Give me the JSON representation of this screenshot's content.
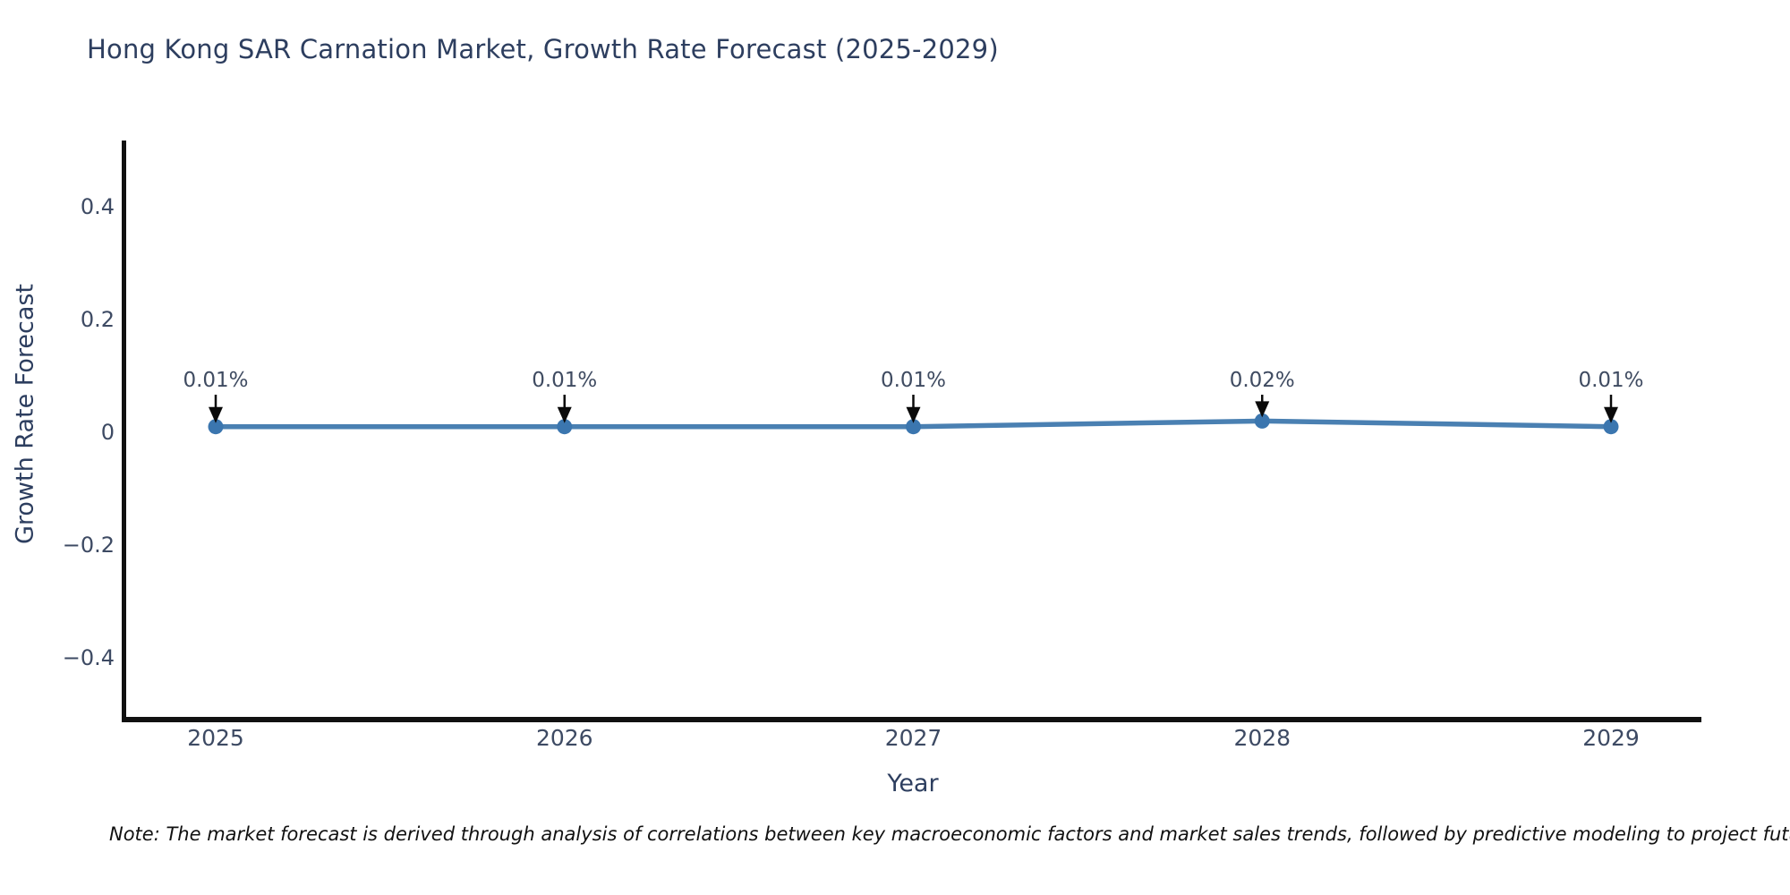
{
  "chart_data": {
    "type": "line",
    "title": "Hong Kong SAR Carnation Market, Growth Rate Forecast (2025-2029)",
    "xlabel": "Year",
    "ylabel": "Growth Rate Forecast",
    "x": [
      2025,
      2026,
      2027,
      2028,
      2029
    ],
    "series": [
      {
        "name": "Growth Rate Forecast (%)",
        "values": [
          0.01,
          0.01,
          0.01,
          0.02,
          0.01
        ]
      }
    ],
    "point_labels": [
      "0.01%",
      "0.01%",
      "0.01%",
      "0.02%",
      "0.01%"
    ],
    "xtick_labels": [
      "2025",
      "2026",
      "2027",
      "2028",
      "2029"
    ],
    "ytick_labels": [
      "0.4",
      "0.2",
      "0",
      "−0.2",
      "−0.4"
    ],
    "ytick_values": [
      0.4,
      0.2,
      0,
      -0.2,
      -0.4
    ],
    "ylim": [
      -0.5,
      0.52
    ],
    "grid": false,
    "legend": "none",
    "colors": {
      "line": "#4a80b2",
      "marker": "#3b76af",
      "axis_spine": "#111111",
      "title_text": "#2d3e5f",
      "tick_text": "#3d4a63",
      "annotation_text": "#3f4b61",
      "annotation_arrow": "#0a0a0a"
    }
  },
  "note": {
    "text": "Note: The market forecast is derived through analysis of correlations between key macroeconomic factors and market sales trends, followed by predictive modeling to project future sa"
  }
}
